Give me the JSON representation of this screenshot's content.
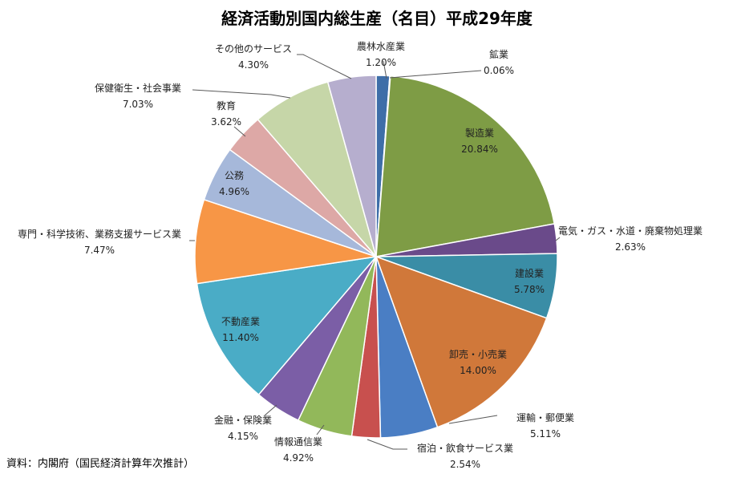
{
  "chart_data": {
    "type": "pie",
    "title": "経済活動別国内総生産（名目）平成29年度",
    "source": "資料：内閣府（国民経済計算年次推計）",
    "start_angle_deg": 0,
    "direction": "clockwise",
    "slices": [
      {
        "name": "農林水産業",
        "value": 1.2,
        "label": "1.20%",
        "color": "#3E6EA8"
      },
      {
        "name": "鉱業",
        "value": 0.06,
        "label": "0.06%",
        "color": "#8B3A3A"
      },
      {
        "name": "製造業",
        "value": 20.84,
        "label": "20.84%",
        "color": "#7E9C45"
      },
      {
        "name": "電気・ガス・水道・廃棄物処理業",
        "value": 2.63,
        "label": "2.63%",
        "color": "#6A4A8A"
      },
      {
        "name": "建設業",
        "value": 5.78,
        "label": "5.78%",
        "color": "#3A8DA6"
      },
      {
        "name": "卸売・小売業",
        "value": 14.0,
        "label": "14.00%",
        "color": "#D0783A"
      },
      {
        "name": "運輸・郵便業",
        "value": 5.11,
        "label": "5.11%",
        "color": "#4A7EC4"
      },
      {
        "name": "宿泊・飲食サービス業",
        "value": 2.54,
        "label": "2.54%",
        "color": "#C8504E"
      },
      {
        "name": "情報通信業",
        "value": 4.92,
        "label": "4.92%",
        "color": "#92B85A"
      },
      {
        "name": "金融・保険業",
        "value": 4.15,
        "label": "4.15%",
        "color": "#7B5EA6"
      },
      {
        "name": "不動産業",
        "value": 11.4,
        "label": "11.40%",
        "color": "#4AACC6"
      },
      {
        "name": "専門・科学技術、業務支援サービス業",
        "value": 7.47,
        "label": "7.47%",
        "color": "#F79646"
      },
      {
        "name": "公務",
        "value": 4.96,
        "label": "4.96%",
        "color": "#A6B8DA"
      },
      {
        "name": "教育",
        "value": 3.62,
        "label": "3.62%",
        "color": "#DDA8A6"
      },
      {
        "name": "保健衛生・社会事業",
        "value": 7.03,
        "label": "7.03%",
        "color": "#C6D6A8"
      },
      {
        "name": "その他のサービス",
        "value": 4.3,
        "label": "4.30%",
        "color": "#B6AECE"
      }
    ]
  }
}
